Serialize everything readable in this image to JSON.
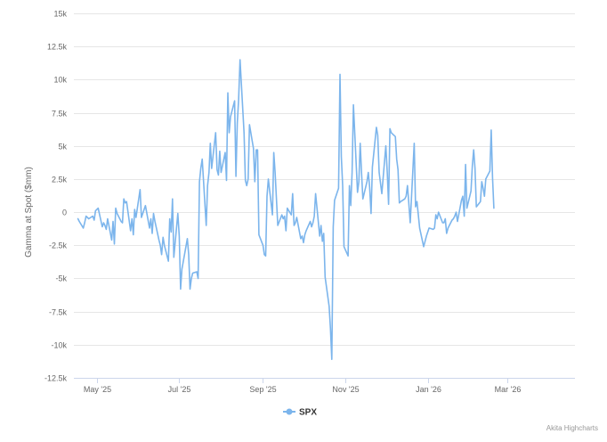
{
  "chart_data": {
    "type": "line",
    "title": "",
    "xlabel": "",
    "ylabel": "Gamma at Spot ($mm)",
    "ylim": [
      -12500,
      15000
    ],
    "yticks": [
      -12500,
      -10000,
      -7500,
      -5000,
      -2500,
      0,
      2500,
      5000,
      7500,
      10000,
      12500,
      15000
    ],
    "ytick_labels": [
      "-12.5k",
      "-10k",
      "-7.5k",
      "-5k",
      "-2.5k",
      "0",
      "2.5k",
      "5k",
      "7.5k",
      "10k",
      "12.5k",
      "15k"
    ],
    "xlim": [
      "2025-04-14",
      "2026-04-20"
    ],
    "xticks": [
      "2025-05-01",
      "2025-07-01",
      "2025-09-01",
      "2025-11-01",
      "2026-01-01",
      "2026-03-01"
    ],
    "xtick_labels": [
      "May '25",
      "Jul '25",
      "Sep '25",
      "Nov '25",
      "Jan '26",
      "Mar '26"
    ],
    "grid": true,
    "legend_position": "bottom-center",
    "credits": "Akita Highcharts",
    "series": [
      {
        "name": "SPX",
        "color": "#7cb5ec",
        "points": [
          [
            "2025-04-17",
            -500
          ],
          [
            "2025-04-18",
            -700
          ],
          [
            "2025-04-21",
            -1200
          ],
          [
            "2025-04-22",
            -800
          ],
          [
            "2025-04-23",
            -300
          ],
          [
            "2025-04-24",
            -400
          ],
          [
            "2025-04-25",
            -500
          ],
          [
            "2025-04-28",
            -300
          ],
          [
            "2025-04-29",
            -600
          ],
          [
            "2025-04-30",
            100
          ],
          [
            "2025-05-01",
            200
          ],
          [
            "2025-05-02",
            300
          ],
          [
            "2025-05-05",
            -1100
          ],
          [
            "2025-05-06",
            -800
          ],
          [
            "2025-05-07",
            -1000
          ],
          [
            "2025-05-08",
            -1300
          ],
          [
            "2025-05-09",
            -500
          ],
          [
            "2025-05-12",
            -2100
          ],
          [
            "2025-05-13",
            -700
          ],
          [
            "2025-05-14",
            -2400
          ],
          [
            "2025-05-15",
            300
          ],
          [
            "2025-05-16",
            -100
          ],
          [
            "2025-05-19",
            -700
          ],
          [
            "2025-05-20",
            -800
          ],
          [
            "2025-05-21",
            1000
          ],
          [
            "2025-05-22",
            700
          ],
          [
            "2025-05-23",
            800
          ],
          [
            "2025-05-26",
            -1400
          ],
          [
            "2025-05-27",
            -500
          ],
          [
            "2025-05-28",
            -1700
          ],
          [
            "2025-05-29",
            200
          ],
          [
            "2025-05-30",
            -400
          ],
          [
            "2025-06-02",
            1700
          ],
          [
            "2025-06-03",
            -400
          ],
          [
            "2025-06-04",
            -100
          ],
          [
            "2025-06-05",
            200
          ],
          [
            "2025-06-06",
            500
          ],
          [
            "2025-06-09",
            -1200
          ],
          [
            "2025-06-10",
            -500
          ],
          [
            "2025-06-11",
            -1600
          ],
          [
            "2025-06-12",
            -100
          ],
          [
            "2025-06-13",
            -700
          ],
          [
            "2025-06-16",
            -2100
          ],
          [
            "2025-06-17",
            -2500
          ],
          [
            "2025-06-18",
            -3200
          ],
          [
            "2025-06-19",
            -1900
          ],
          [
            "2025-06-20",
            -2500
          ],
          [
            "2025-06-23",
            -3700
          ],
          [
            "2025-06-24",
            -500
          ],
          [
            "2025-06-25",
            -1500
          ],
          [
            "2025-06-26",
            1000
          ],
          [
            "2025-06-27",
            -3400
          ],
          [
            "2025-06-30",
            -100
          ],
          [
            "2025-07-01",
            -1800
          ],
          [
            "2025-07-02",
            -5800
          ],
          [
            "2025-07-03",
            -4300
          ],
          [
            "2025-07-07",
            -2000
          ],
          [
            "2025-07-08",
            -3200
          ],
          [
            "2025-07-09",
            -5800
          ],
          [
            "2025-07-10",
            -5000
          ],
          [
            "2025-07-11",
            -4600
          ],
          [
            "2025-07-14",
            -4500
          ],
          [
            "2025-07-15",
            -5000
          ],
          [
            "2025-07-16",
            2300
          ],
          [
            "2025-07-17",
            3300
          ],
          [
            "2025-07-18",
            4000
          ],
          [
            "2025-07-21",
            -1000
          ],
          [
            "2025-07-22",
            2000
          ],
          [
            "2025-07-23",
            3000
          ],
          [
            "2025-07-24",
            5200
          ],
          [
            "2025-07-25",
            3300
          ],
          [
            "2025-07-28",
            6000
          ],
          [
            "2025-07-29",
            3200
          ],
          [
            "2025-07-30",
            2800
          ],
          [
            "2025-07-31",
            4600
          ],
          [
            "2025-08-01",
            3000
          ],
          [
            "2025-08-04",
            4500
          ],
          [
            "2025-08-05",
            2400
          ],
          [
            "2025-08-06",
            9000
          ],
          [
            "2025-08-07",
            6000
          ],
          [
            "2025-08-08",
            7200
          ],
          [
            "2025-08-11",
            8400
          ],
          [
            "2025-08-12",
            2700
          ],
          [
            "2025-08-13",
            6700
          ],
          [
            "2025-08-14",
            8500
          ],
          [
            "2025-08-15",
            11500
          ],
          [
            "2025-08-18",
            6000
          ],
          [
            "2025-08-19",
            2400
          ],
          [
            "2025-08-20",
            2000
          ],
          [
            "2025-08-21",
            2500
          ],
          [
            "2025-08-22",
            6600
          ],
          [
            "2025-08-25",
            4800
          ],
          [
            "2025-08-26",
            2300
          ],
          [
            "2025-08-27",
            4700
          ],
          [
            "2025-08-28",
            4700
          ],
          [
            "2025-08-29",
            -1700
          ],
          [
            "2025-09-01",
            -2500
          ],
          [
            "2025-09-02",
            -3200
          ],
          [
            "2025-09-03",
            -3300
          ],
          [
            "2025-09-04",
            1200
          ],
          [
            "2025-09-05",
            2500
          ],
          [
            "2025-09-08",
            -200
          ],
          [
            "2025-09-09",
            4500
          ],
          [
            "2025-09-10",
            3000
          ],
          [
            "2025-09-11",
            1000
          ],
          [
            "2025-09-12",
            -1000
          ],
          [
            "2025-09-15",
            -200
          ],
          [
            "2025-09-16",
            -500
          ],
          [
            "2025-09-17",
            -300
          ],
          [
            "2025-09-18",
            -1400
          ],
          [
            "2025-09-19",
            300
          ],
          [
            "2025-09-22",
            -200
          ],
          [
            "2025-09-23",
            1400
          ],
          [
            "2025-09-24",
            -1000
          ],
          [
            "2025-09-25",
            -800
          ],
          [
            "2025-09-26",
            -400
          ],
          [
            "2025-09-29",
            -2000
          ],
          [
            "2025-09-30",
            -1800
          ],
          [
            "2025-10-01",
            -2300
          ],
          [
            "2025-10-02",
            -1700
          ],
          [
            "2025-10-03",
            -1400
          ],
          [
            "2025-10-06",
            -700
          ],
          [
            "2025-10-07",
            -1100
          ],
          [
            "2025-10-08",
            -800
          ],
          [
            "2025-10-09",
            -300
          ],
          [
            "2025-10-10",
            1400
          ],
          [
            "2025-10-13",
            -1800
          ],
          [
            "2025-10-14",
            -1000
          ],
          [
            "2025-10-15",
            -2200
          ],
          [
            "2025-10-16",
            -1600
          ],
          [
            "2025-10-17",
            -4900
          ],
          [
            "2025-10-20",
            -7100
          ],
          [
            "2025-10-21",
            -8800
          ],
          [
            "2025-10-22",
            -11100
          ],
          [
            "2025-10-23",
            -1100
          ],
          [
            "2025-10-24",
            900
          ],
          [
            "2025-10-27",
            1800
          ],
          [
            "2025-10-28",
            10400
          ],
          [
            "2025-10-29",
            4200
          ],
          [
            "2025-10-30",
            2000
          ],
          [
            "2025-10-31",
            -2600
          ],
          [
            "2025-11-03",
            -3300
          ],
          [
            "2025-11-04",
            2000
          ],
          [
            "2025-11-05",
            500
          ],
          [
            "2025-11-06",
            3000
          ],
          [
            "2025-11-07",
            8100
          ],
          [
            "2025-11-10",
            1500
          ],
          [
            "2025-11-11",
            2300
          ],
          [
            "2025-11-12",
            5200
          ],
          [
            "2025-11-13",
            3000
          ],
          [
            "2025-11-14",
            1000
          ],
          [
            "2025-11-17",
            2300
          ],
          [
            "2025-11-18",
            3000
          ],
          [
            "2025-11-19",
            1900
          ],
          [
            "2025-11-20",
            -100
          ],
          [
            "2025-11-21",
            3400
          ],
          [
            "2025-11-24",
            6400
          ],
          [
            "2025-11-25",
            5800
          ],
          [
            "2025-11-26",
            3000
          ],
          [
            "2025-11-28",
            1400
          ],
          [
            "2025-12-01",
            5000
          ],
          [
            "2025-12-02",
            3000
          ],
          [
            "2025-12-03",
            600
          ],
          [
            "2025-12-04",
            6300
          ],
          [
            "2025-12-05",
            6000
          ],
          [
            "2025-12-08",
            5700
          ],
          [
            "2025-12-09",
            4000
          ],
          [
            "2025-12-10",
            3200
          ],
          [
            "2025-12-11",
            700
          ],
          [
            "2025-12-12",
            800
          ],
          [
            "2025-12-15",
            1000
          ],
          [
            "2025-12-16",
            1200
          ],
          [
            "2025-12-17",
            2000
          ],
          [
            "2025-12-18",
            700
          ],
          [
            "2025-12-19",
            -800
          ],
          [
            "2025-12-22",
            5200
          ],
          [
            "2025-12-23",
            400
          ],
          [
            "2025-12-24",
            800
          ],
          [
            "2025-12-26",
            -1200
          ],
          [
            "2025-12-29",
            -2600
          ],
          [
            "2025-12-30",
            -2200
          ],
          [
            "2025-12-31",
            -1800
          ],
          [
            "2026-01-02",
            -1200
          ],
          [
            "2026-01-05",
            -1300
          ],
          [
            "2026-01-06",
            -1200
          ],
          [
            "2026-01-07",
            -200
          ],
          [
            "2026-01-08",
            -500
          ],
          [
            "2026-01-09",
            0
          ],
          [
            "2026-01-12",
            -800
          ],
          [
            "2026-01-13",
            -800
          ],
          [
            "2026-01-14",
            -500
          ],
          [
            "2026-01-15",
            -1600
          ],
          [
            "2026-01-16",
            -1200
          ],
          [
            "2026-01-19",
            -600
          ],
          [
            "2026-01-20",
            -500
          ],
          [
            "2026-01-21",
            -300
          ],
          [
            "2026-01-22",
            0
          ],
          [
            "2026-01-23",
            -700
          ],
          [
            "2026-01-26",
            900
          ],
          [
            "2026-01-27",
            1200
          ],
          [
            "2026-01-28",
            -300
          ],
          [
            "2026-01-29",
            3600
          ],
          [
            "2026-01-30",
            300
          ],
          [
            "2026-02-02",
            1600
          ],
          [
            "2026-02-03",
            3500
          ],
          [
            "2026-02-04",
            4700
          ],
          [
            "2026-02-05",
            3300
          ],
          [
            "2026-02-06",
            400
          ],
          [
            "2026-02-09",
            800
          ],
          [
            "2026-02-10",
            2300
          ],
          [
            "2026-02-11",
            1800
          ],
          [
            "2026-02-12",
            1200
          ],
          [
            "2026-02-13",
            2500
          ],
          [
            "2026-02-16",
            3100
          ],
          [
            "2026-02-17",
            6200
          ],
          [
            "2026-02-18",
            2600
          ],
          [
            "2026-02-19",
            300
          ]
        ]
      }
    ]
  }
}
